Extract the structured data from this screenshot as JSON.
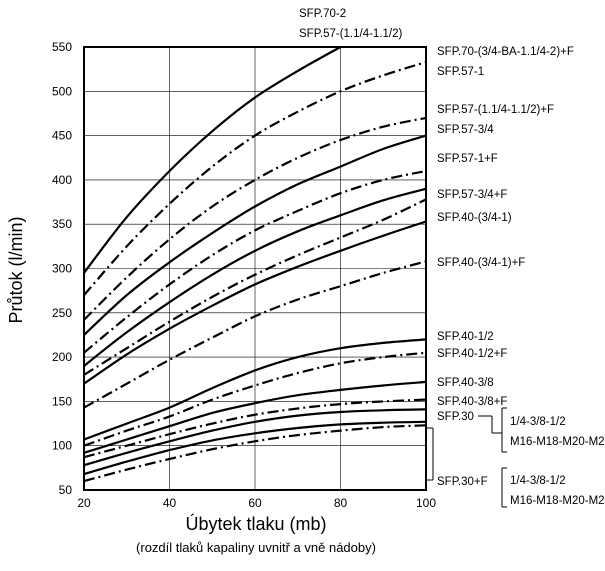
{
  "chart_data": {
    "type": "line",
    "xlabel": "Úbytek tlaku (mb)",
    "xlabel_sub": "(rozdíl tlaků kapaliny uvnitř a vně nádoby)",
    "ylabel": "Průtok (l/min)",
    "xlim": [
      20,
      100
    ],
    "ylim": [
      50,
      550
    ],
    "x_ticks": [
      "20",
      "40",
      "60",
      "80",
      "100"
    ],
    "y_ticks": [
      "50",
      "100",
      "150",
      "200",
      "250",
      "300",
      "350",
      "400",
      "450",
      "500",
      "550"
    ],
    "grid": true,
    "x": [
      20,
      30,
      40,
      50,
      60,
      70,
      80,
      90,
      100
    ],
    "series": [
      {
        "name": "SFP.70-2",
        "style": "solid",
        "values": [
          295,
          358,
          410,
          455,
          493,
          523,
          550,
          null,
          null
        ]
      },
      {
        "name": "SFP.57-(1.1/4-1.1/2)",
        "style": "dashdot",
        "values": [
          270,
          325,
          373,
          415,
          450,
          477,
          500,
          518,
          533
        ]
      },
      {
        "name": "SFP.70-(3/4-BA-1.1/4-2)+F",
        "style": "dashdot",
        "values": [
          242,
          290,
          333,
          370,
          400,
          425,
          445,
          460,
          470
        ]
      },
      {
        "name": "SFP.57-1",
        "style": "solid",
        "values": [
          225,
          270,
          307,
          340,
          370,
          395,
          415,
          435,
          450
        ]
      },
      {
        "name": "SFP.57-(1.1/4-1.1/2)+F",
        "style": "dashdot",
        "values": [
          205,
          245,
          282,
          315,
          343,
          365,
          385,
          400,
          410
        ]
      },
      {
        "name": "SFP.57-3/4",
        "style": "solid",
        "values": [
          190,
          228,
          262,
          293,
          320,
          342,
          360,
          377,
          390
        ]
      },
      {
        "name": "SFP.57-1+F",
        "style": "dashdot",
        "values": [
          180,
          210,
          240,
          268,
          293,
          315,
          335,
          355,
          378
        ]
      },
      {
        "name": "SFP.57-3/4+F",
        "style": "solid",
        "values": [
          170,
          203,
          232,
          258,
          282,
          302,
          320,
          337,
          353
        ]
      },
      {
        "name": "SFP.40-(3/4-1)",
        "style": "dashdot",
        "values": [
          143,
          170,
          197,
          222,
          246,
          265,
          280,
          295,
          308
        ]
      },
      {
        "name": "SFP.40-(3/4-1)+F",
        "style": "solid",
        "values": [
          107,
          125,
          143,
          165,
          185,
          200,
          210,
          216,
          220
        ]
      },
      {
        "name": "SFP.40-1/2",
        "style": "dashdot",
        "values": [
          100,
          117,
          133,
          152,
          168,
          182,
          193,
          200,
          205
        ]
      },
      {
        "name": "SFP.40-1/2+F",
        "style": "solid",
        "values": [
          92,
          107,
          122,
          137,
          148,
          157,
          163,
          168,
          172
        ]
      },
      {
        "name": "SFP.40-3/8",
        "style": "dashdot",
        "values": [
          87,
          100,
          113,
          125,
          135,
          142,
          147,
          150,
          152
        ]
      },
      {
        "name": "SFP.40-3/8+F",
        "style": "solid",
        "values": [
          78,
          92,
          105,
          117,
          127,
          134,
          138,
          140,
          141
        ]
      },
      {
        "name": "SFP.30",
        "style": "solid",
        "values": [
          68,
          82,
          95,
          106,
          114,
          120,
          124,
          126,
          127
        ]
      },
      {
        "name": "SFP.30+F",
        "style": "dashdot",
        "values": [
          60,
          73,
          85,
          96,
          105,
          112,
          117,
          121,
          123
        ]
      }
    ],
    "top_labels": [
      "SFP.70-2",
      "SFP.57-(1.1/4-1.1/2)"
    ],
    "right_labels": [
      "SFP.70-(3/4-BA-1.1/4-2)+F",
      "SFP.57-1",
      "SFP.57-(1.1/4-1.1/2)+F",
      "SFP.57-3/4",
      "SFP.57-1+F",
      "SFP.57-3/4+F",
      "SFP.40-(3/4-1)",
      "SFP.40-(3/4-1)+F",
      "SFP.40-1/2",
      "SFP.40-1/2+F",
      "SFP.40-3/8",
      "SFP.40-3/8+F",
      "SFP.30",
      "SFP.30+F"
    ],
    "group_annotations": [
      {
        "group": "SFP.30",
        "lines": [
          "1/4-3/8-1/2",
          "M16-M18-M20-M22"
        ]
      },
      {
        "group": "SFP.30+F",
        "lines": [
          "1/4-3/8-1/2",
          "M16-M18-M20-M22"
        ]
      }
    ]
  }
}
